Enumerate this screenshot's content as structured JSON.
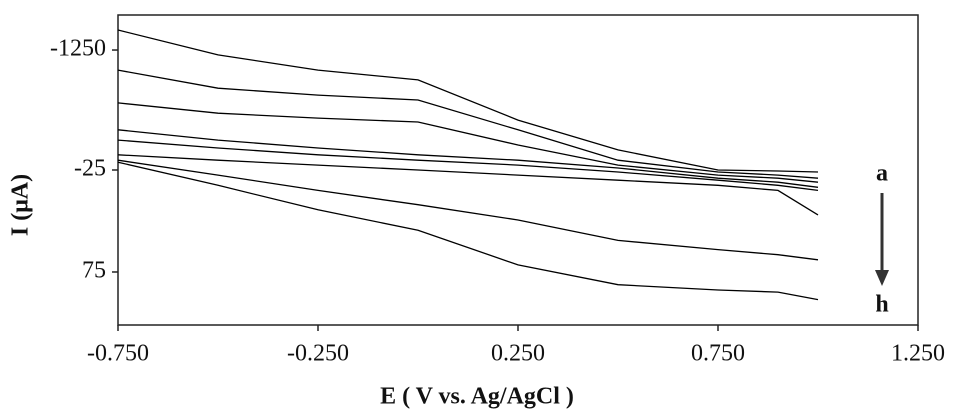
{
  "chart_data": {
    "type": "line",
    "x_label": "E ( V vs. Ag/AgCl )",
    "y_label": "I (μA)",
    "x": [
      -0.75,
      -0.5,
      -0.25,
      0,
      0.25,
      0.5,
      0.75,
      0.9,
      1.0
    ],
    "series": [
      {
        "color": "#000000",
        "values": [
          -1450,
          -1200,
          -1045,
          -945,
          -535,
          -230,
          -25,
          -24,
          -23
        ]
      },
      {
        "color": "#000000",
        "values": [
          -1045,
          -860,
          -790,
          -740,
          -435,
          -125,
          -23,
          -20,
          -17
        ]
      },
      {
        "color": "#000000",
        "values": [
          -710,
          -605,
          -555,
          -515,
          -280,
          -75,
          -20,
          -17,
          -13
        ]
      },
      {
        "color": "#000000",
        "values": [
          -435,
          -330,
          -250,
          -180,
          -125,
          -45,
          -17,
          -13,
          -8
        ]
      },
      {
        "color": "#000000",
        "values": [
          -330,
          -250,
          -180,
          -125,
          -75,
          -23,
          -15,
          -10,
          -5
        ]
      },
      {
        "color": "#000000",
        "values": [
          -180,
          -125,
          -75,
          -25,
          -20,
          -15,
          -10,
          -5,
          19
        ]
      },
      {
        "color": "#000000",
        "values": [
          -125,
          -20,
          -5,
          9,
          24,
          44,
          53,
          58,
          63
        ]
      },
      {
        "color": "#000000",
        "values": [
          -105,
          -10,
          14,
          34,
          68,
          87,
          92,
          94,
          101
        ]
      }
    ],
    "annotations": [
      "a",
      "h"
    ],
    "xlim": [
      -0.75,
      1.25
    ],
    "xticks": [
      {
        "value": -0.75,
        "label": "-0.750"
      },
      {
        "value": -0.25,
        "label": "-0.250"
      },
      {
        "value": 0.25,
        "label": "0.250"
      },
      {
        "value": 0.75,
        "label": "0.750"
      },
      {
        "value": 1.25,
        "label": "1.250"
      }
    ],
    "ylim": [
      -1600,
      125
    ],
    "yticks": [
      -1250,
      -25,
      75
    ],
    "grid": false
  }
}
